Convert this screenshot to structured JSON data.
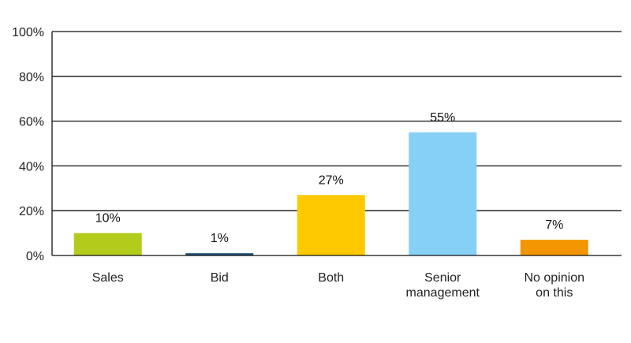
{
  "chart_data": {
    "type": "bar",
    "title": "",
    "xlabel": "",
    "ylabel": "",
    "categories": [
      [
        "Sales"
      ],
      [
        "Bid"
      ],
      [
        "Both"
      ],
      [
        "Senior",
        "management"
      ],
      [
        "No opinion",
        "on this"
      ]
    ],
    "values": [
      10,
      1,
      27,
      55,
      7
    ],
    "data_labels": [
      "10%",
      "1%",
      "27%",
      "55%",
      "7%"
    ],
    "colors": [
      "#b3cb1b",
      "#1b4f7a",
      "#ffc900",
      "#86cff5",
      "#f39500"
    ],
    "ylim": [
      0,
      100
    ],
    "y_ticks": [
      0,
      20,
      40,
      60,
      80,
      100
    ],
    "y_tick_labels": [
      "0%",
      "20%",
      "40%",
      "60%",
      "80%",
      "100%"
    ],
    "grid": true,
    "legend": "none"
  }
}
